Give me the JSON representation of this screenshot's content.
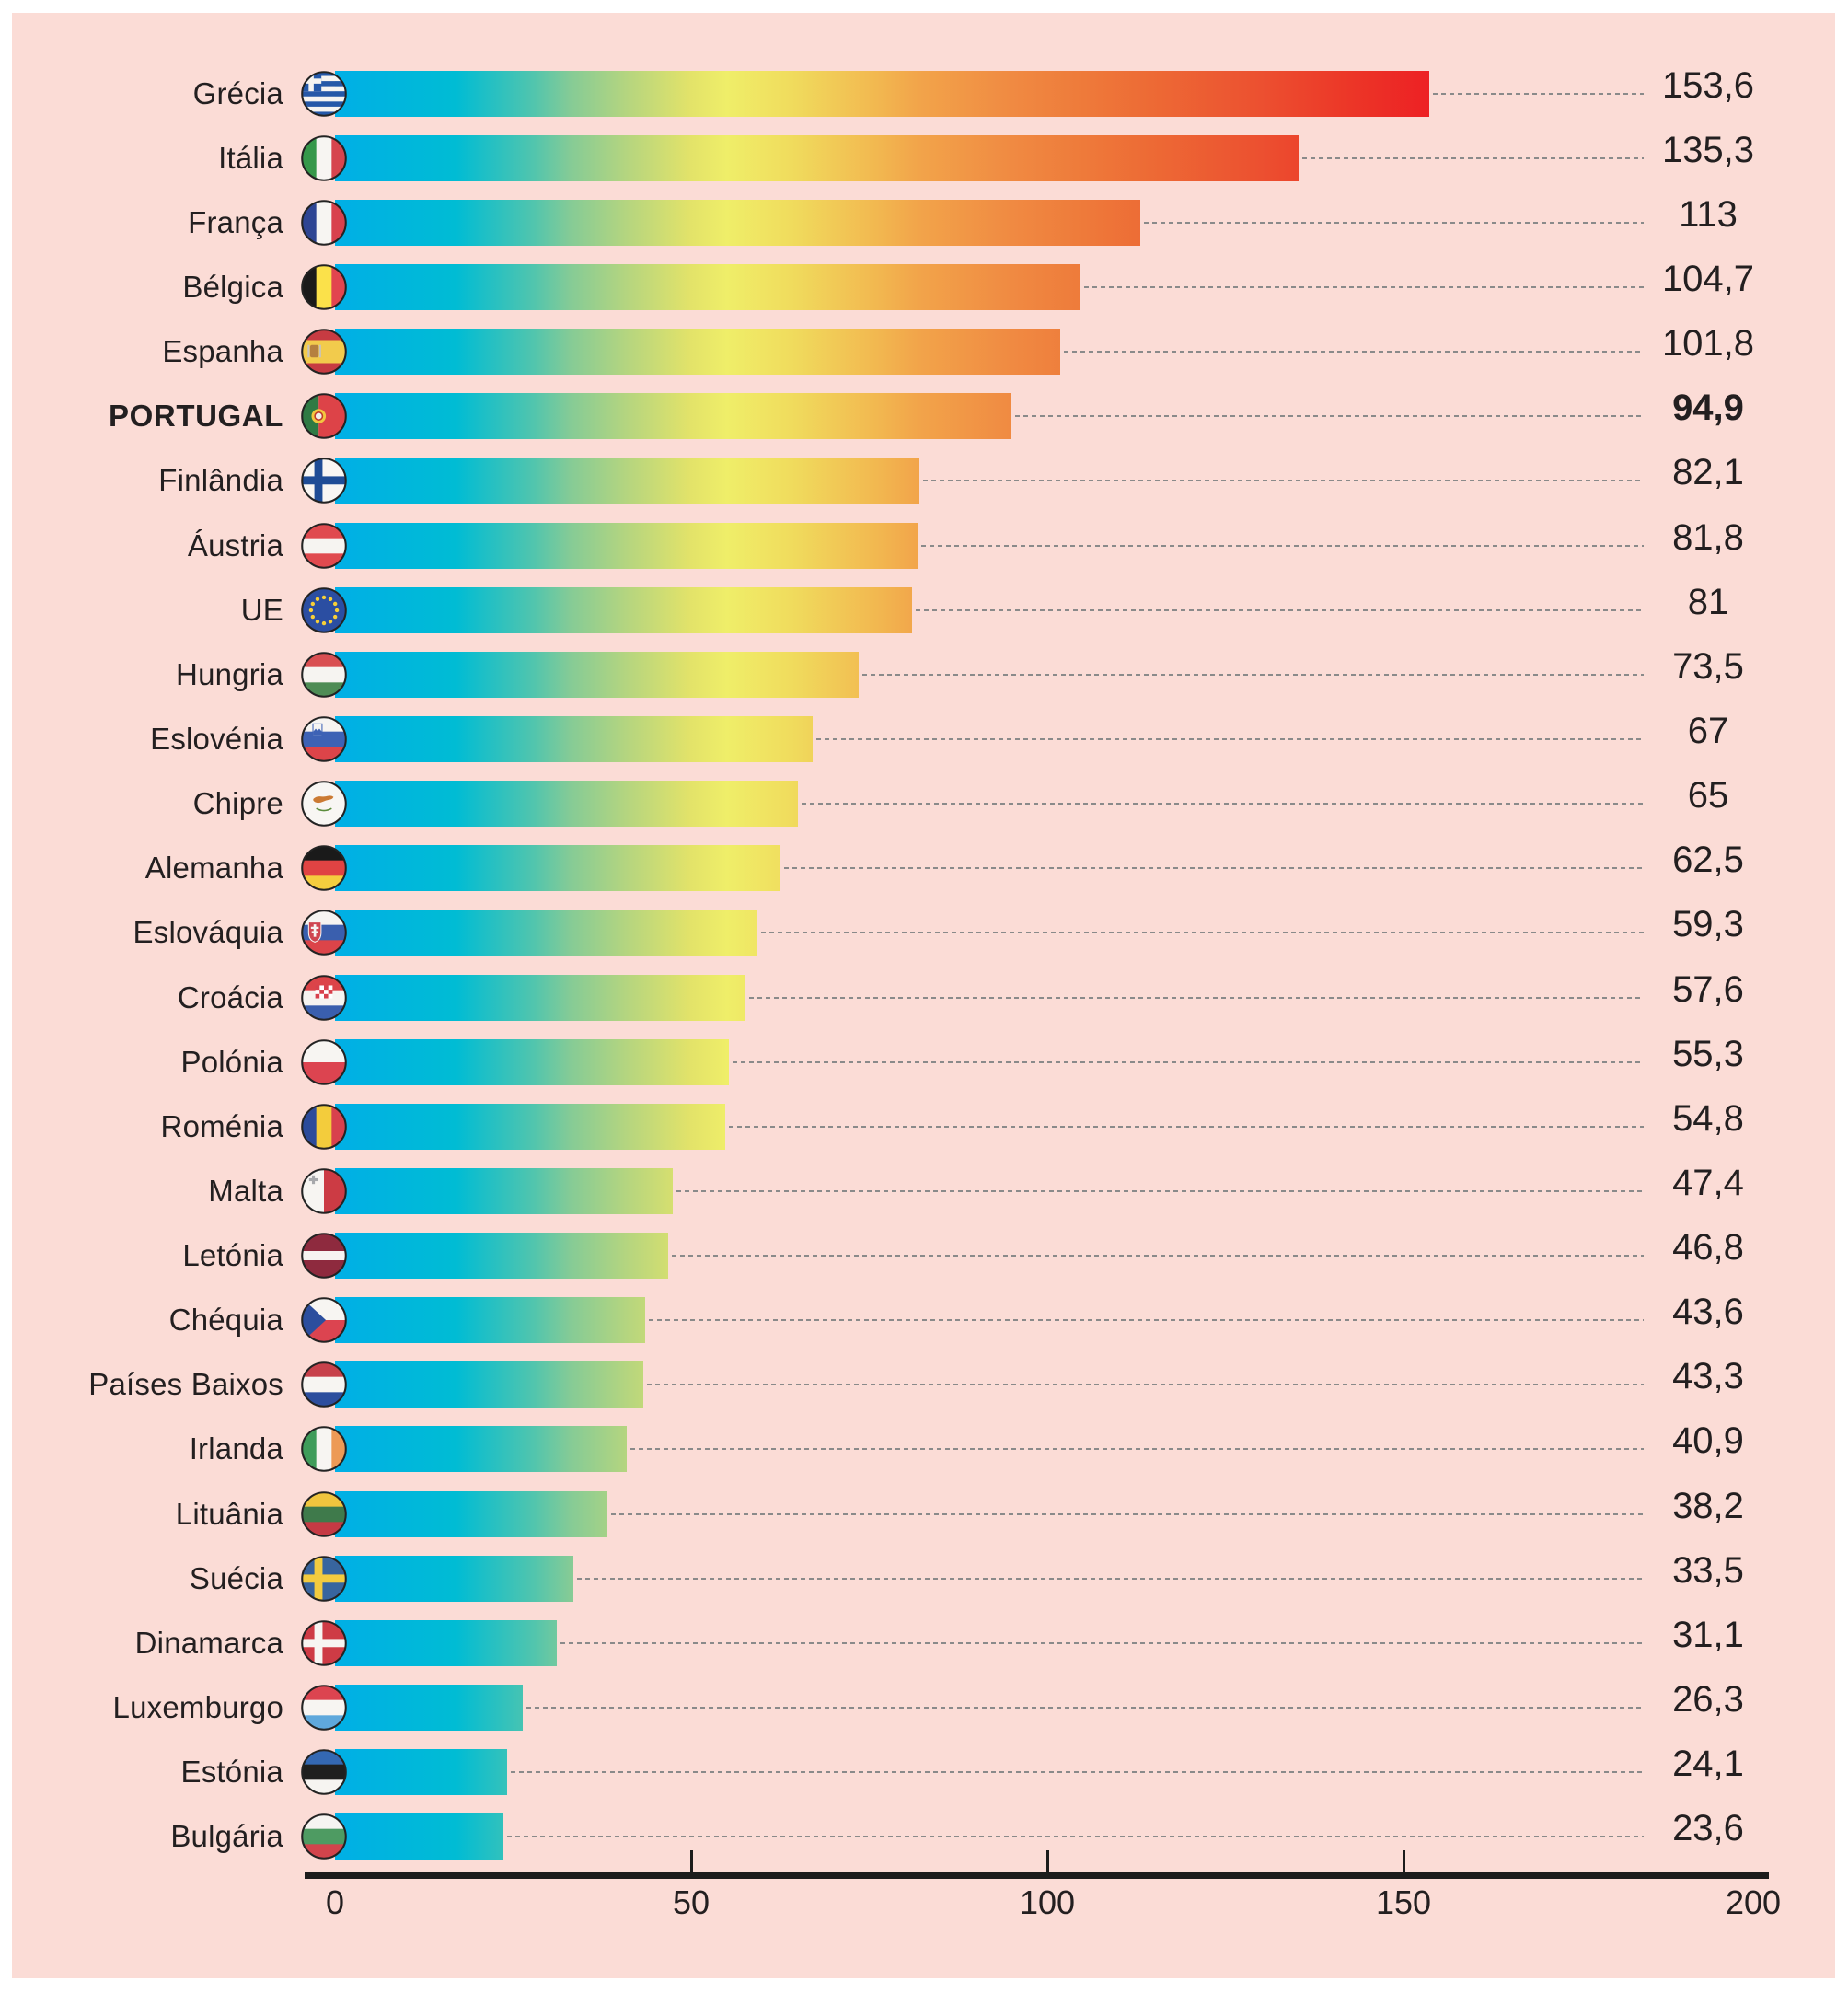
{
  "chart_data": {
    "type": "bar",
    "orientation": "horizontal",
    "categories": [
      "Grécia",
      "Itália",
      "França",
      "Bélgica",
      "Espanha",
      "PORTUGAL",
      "Finlândia",
      "Áustria",
      "UE",
      "Hungria",
      "Eslovénia",
      "Chipre",
      "Alemanha",
      "Eslováquia",
      "Croácia",
      "Polónia",
      "Roménia",
      "Malta",
      "Letónia",
      "Chéquia",
      "Países Baixos",
      "Irlanda",
      "Lituânia",
      "Suécia",
      "Dinamarca",
      "Luxemburgo",
      "Estónia",
      "Bulgária"
    ],
    "values": [
      153.6,
      135.3,
      113,
      104.7,
      101.8,
      94.9,
      82.1,
      81.8,
      81,
      73.5,
      67,
      65,
      62.5,
      59.3,
      57.6,
      55.3,
      54.8,
      47.4,
      46.8,
      43.6,
      43.3,
      40.9,
      38.2,
      33.5,
      31.1,
      26.3,
      24.1,
      23.6
    ],
    "value_labels": [
      "153,6",
      "135,3",
      "113",
      "104,7",
      "101,8",
      "94,9",
      "82,1",
      "81,8",
      "81",
      "73,5",
      "67",
      "65",
      "62,5",
      "59,3",
      "57,6",
      "55,3",
      "54,8",
      "47,4",
      "46,8",
      "43,6",
      "43,3",
      "40,9",
      "38,2",
      "33,5",
      "31,1",
      "26,3",
      "24,1",
      "23,6"
    ],
    "flags": [
      "flag-greece",
      "flag-italy",
      "flag-france",
      "flag-belgium",
      "flag-spain",
      "flag-portugal",
      "flag-finland",
      "flag-austria",
      "flag-eu",
      "flag-hungary",
      "flag-slovenia",
      "flag-cyprus",
      "flag-germany",
      "flag-slovakia",
      "flag-croatia",
      "flag-poland",
      "flag-romania",
      "flag-malta",
      "flag-latvia",
      "flag-czechia",
      "flag-netherlands",
      "flag-ireland",
      "flag-lithuania",
      "flag-sweden",
      "flag-denmark",
      "flag-luxembourg",
      "flag-estonia",
      "flag-bulgaria"
    ],
    "highlight": "PORTUGAL",
    "highlight_index": 5,
    "xlim": [
      0,
      200
    ],
    "xticks": [
      0,
      50,
      100,
      150,
      200
    ],
    "xtick_labels": [
      "0",
      "50",
      "100",
      "150",
      "200"
    ],
    "grid": false,
    "legend": false,
    "bar_gradient_stops": [
      {
        "pos": 0,
        "color": "#00AFE6"
      },
      {
        "pos": 8.5,
        "color": "#00BCD4"
      },
      {
        "pos": 14,
        "color": "#52C5AD"
      },
      {
        "pos": 16.5,
        "color": "#85CB96"
      },
      {
        "pos": 20.5,
        "color": "#B5D57F"
      },
      {
        "pos": 25,
        "color": "#E3E369"
      },
      {
        "pos": 27.5,
        "color": "#EFEE69"
      },
      {
        "pos": 32,
        "color": "#F0DC5D"
      },
      {
        "pos": 38,
        "color": "#F2B850"
      },
      {
        "pos": 41,
        "color": "#F2A44A"
      },
      {
        "pos": 47.5,
        "color": "#F08A42"
      },
      {
        "pos": 52,
        "color": "#EE7C3B"
      },
      {
        "pos": 57,
        "color": "#ED6B35"
      },
      {
        "pos": 65,
        "color": "#EC5030"
      },
      {
        "pos": 71.5,
        "color": "#EC3527"
      },
      {
        "pos": 77,
        "color": "#ED2024"
      },
      {
        "pos": 100,
        "color": "#E31C23"
      }
    ],
    "colors": {
      "panel_background": "#FBDCD6",
      "page_background": "#FFFFFF",
      "text": "#231F20",
      "axis": "#1C1C1C",
      "leader_line": "#8A8A8A",
      "flag_ring": "#232323"
    }
  }
}
